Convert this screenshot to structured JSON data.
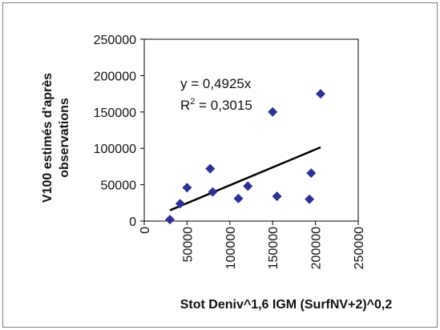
{
  "chart_data": {
    "type": "scatter",
    "xlabel": "Stot Deniv^1,6 IGM (SurfNV+2)^0,2",
    "ylabel_lines": [
      "V100 estimés d'après",
      "observations"
    ],
    "xlim": [
      0,
      250000
    ],
    "ylim": [
      0,
      250000
    ],
    "x_ticks": [
      "0",
      "50000",
      "100000",
      "150000",
      "200000",
      "250000"
    ],
    "y_ticks": [
      "0",
      "50000",
      "100000",
      "150000",
      "200000",
      "250000"
    ],
    "points": [
      {
        "x": 30000,
        "y": 2000
      },
      {
        "x": 42000,
        "y": 24000
      },
      {
        "x": 50000,
        "y": 46000
      },
      {
        "x": 77000,
        "y": 72000
      },
      {
        "x": 80000,
        "y": 40000
      },
      {
        "x": 110000,
        "y": 31000
      },
      {
        "x": 121000,
        "y": 48000
      },
      {
        "x": 150000,
        "y": 150000
      },
      {
        "x": 155000,
        "y": 34000
      },
      {
        "x": 193000,
        "y": 30000
      },
      {
        "x": 195000,
        "y": 66000
      },
      {
        "x": 206000,
        "y": 175000
      }
    ],
    "trendline": {
      "slope": 0.4925,
      "x_range": [
        30000,
        206000
      ]
    },
    "equation_text": "y = 0,4925x",
    "r2_prefix": "R",
    "r2_sup": "2",
    "r2_value": " = 0,3015",
    "marker_color": "#2e3192",
    "line_color": "#000000",
    "grid": false,
    "legend": "none"
  }
}
